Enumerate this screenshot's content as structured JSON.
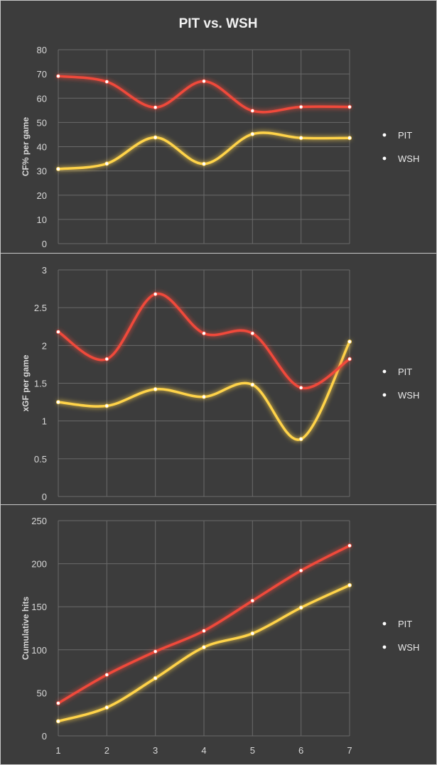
{
  "title": "PIT vs. WSH",
  "colors": {
    "PIT": "#ffd34a",
    "WSH": "#f04a3a",
    "background": "#3c3c3c",
    "grid": "#6a6a6a"
  },
  "chart_data": [
    {
      "type": "line",
      "title": "PIT vs. WSH",
      "ylabel": "CF% per game",
      "xlabel": "",
      "x": [
        1,
        2,
        3,
        4,
        5,
        6,
        7
      ],
      "ylim": [
        0,
        80
      ],
      "yticks": [
        0,
        10,
        20,
        30,
        40,
        50,
        60,
        70,
        80
      ],
      "ytick_labels": [
        "0",
        "10",
        "20",
        "30",
        "40",
        "50",
        "60",
        "70",
        "80"
      ],
      "grid": true,
      "legend_position": "right",
      "series": [
        {
          "name": "PIT",
          "color": "#ffd34a",
          "values": [
            30.8,
            33.0,
            43.8,
            32.9,
            45.2,
            43.6,
            43.6
          ]
        },
        {
          "name": "WSH",
          "color": "#f04a3a",
          "values": [
            69.1,
            66.8,
            56.2,
            67.0,
            54.8,
            56.4,
            56.4
          ]
        }
      ]
    },
    {
      "type": "line",
      "title": "",
      "ylabel": "xGF per game",
      "xlabel": "",
      "x": [
        1,
        2,
        3,
        4,
        5,
        6,
        7
      ],
      "ylim": [
        0,
        3
      ],
      "yticks": [
        0,
        0.5,
        1,
        1.5,
        2,
        2.5,
        3
      ],
      "ytick_labels": [
        "0",
        "0.5",
        "1",
        "1.5",
        "2",
        "2.5",
        "3"
      ],
      "grid": true,
      "legend_position": "right",
      "series": [
        {
          "name": "PIT",
          "color": "#ffd34a",
          "values": [
            1.25,
            1.2,
            1.42,
            1.32,
            1.48,
            0.76,
            2.05
          ]
        },
        {
          "name": "WSH",
          "color": "#f04a3a",
          "values": [
            2.18,
            1.82,
            2.68,
            2.16,
            2.16,
            1.44,
            1.82
          ]
        }
      ]
    },
    {
      "type": "line",
      "title": "",
      "ylabel": "Cumulative hits",
      "xlabel": "",
      "x": [
        1,
        2,
        3,
        4,
        5,
        6,
        7
      ],
      "xtick_labels": [
        "1",
        "2",
        "3",
        "4",
        "5",
        "6",
        "7"
      ],
      "ylim": [
        0,
        250
      ],
      "yticks": [
        0,
        50,
        100,
        150,
        200,
        250
      ],
      "ytick_labels": [
        "0",
        "50",
        "100",
        "150",
        "200",
        "250"
      ],
      "grid": true,
      "legend_position": "right",
      "series": [
        {
          "name": "PIT",
          "color": "#ffd34a",
          "values": [
            17,
            33,
            67,
            103,
            119,
            149,
            175
          ]
        },
        {
          "name": "WSH",
          "color": "#f04a3a",
          "values": [
            38,
            71,
            98,
            122,
            157,
            192,
            221
          ]
        }
      ]
    }
  ]
}
